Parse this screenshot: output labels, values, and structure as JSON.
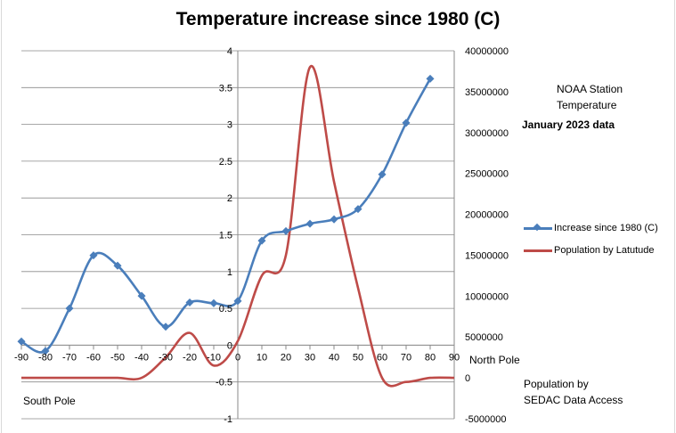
{
  "chart_data": {
    "type": "line",
    "title": "Temperature increase since 1980 (C)",
    "x_ticks": [
      -90,
      -80,
      -70,
      -60,
      -50,
      -40,
      -30,
      -20,
      -10,
      0,
      10,
      20,
      30,
      40,
      50,
      60,
      70,
      80,
      90
    ],
    "xlim": [
      -90,
      90
    ],
    "y_left_ticks": [
      "-1",
      "-0.5",
      "0",
      "0.5",
      "1",
      "1.5",
      "2",
      "2.5",
      "3",
      "3.5",
      "4"
    ],
    "ylim_left": [
      -1,
      4
    ],
    "y_right_ticks": [
      "-5000000",
      "0",
      "5000000",
      "10000000",
      "15000000",
      "20000000",
      "25000000",
      "30000000",
      "35000000",
      "40000000"
    ],
    "ylim_right": [
      -5000000,
      40000000
    ],
    "grid": true,
    "legend_position": "right",
    "series": [
      {
        "name": "Increase since 1980 (C)",
        "axis": "left",
        "color": "#4a7ebb",
        "marker": "diamond",
        "x": [
          -90,
          -80,
          -70,
          -60,
          -50,
          -40,
          -30,
          -20,
          -10,
          0,
          10,
          20,
          30,
          40,
          50,
          60,
          70,
          80
        ],
        "y": [
          0.05,
          -0.08,
          0.5,
          1.22,
          1.08,
          0.67,
          0.25,
          0.58,
          0.57,
          0.6,
          1.42,
          1.55,
          1.65,
          1.71,
          1.85,
          2.32,
          3.02,
          3.62
        ]
      },
      {
        "name": "Population by Latutude",
        "axis": "right",
        "color": "#be4b48",
        "marker": "none",
        "x": [
          -90,
          -80,
          -70,
          -60,
          -50,
          -40,
          -30,
          -20,
          -10,
          0,
          10,
          20,
          30,
          40,
          50,
          60,
          70,
          80,
          90
        ],
        "y": [
          0,
          0,
          0,
          0,
          0,
          0,
          2500000,
          5500000,
          1500000,
          4500000,
          12500000,
          15000000,
          38000000,
          24000000,
          11000000,
          0,
          -500000,
          0,
          0
        ]
      }
    ],
    "annotations": {
      "north_pole": "North Pole",
      "south_pole": "South Pole",
      "noaa_line1": "NOAA Station",
      "noaa_line2": "Temperature",
      "data_date": "January 2023 data",
      "population_line1": "Population by",
      "population_line2": "SEDAC Data Access"
    }
  }
}
